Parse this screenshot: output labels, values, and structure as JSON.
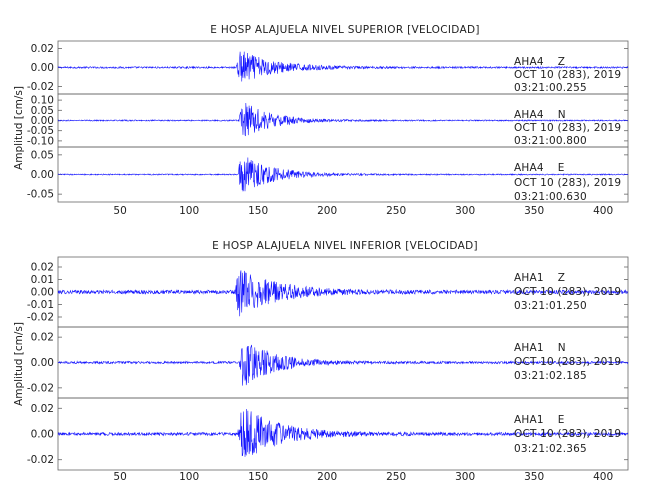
{
  "panels": [
    {
      "title": "E HOSP ALAJUELA NIVEL SUPERIOR [VELOCIDAD]",
      "ylabel": "Amplitud [cm/s]",
      "xlim": [
        5,
        418
      ],
      "xticks": [
        "50",
        "100",
        "150",
        "200",
        "250",
        "300",
        "350",
        "400"
      ],
      "traces": [
        {
          "station": "AHA4",
          "component": "Z",
          "date": "OCT 10 (283), 2019",
          "time": "03:21:00.255",
          "ylim": [
            -0.028,
            0.028
          ],
          "yticks": [
            "0.02",
            "0.00",
            "-0.02"
          ],
          "noise": 0.0009,
          "peak": 0.021,
          "onset": 134,
          "decay": 24
        },
        {
          "station": "AHA4",
          "component": "N",
          "date": "OCT 10 (283), 2019",
          "time": "03:21:00.800",
          "ylim": [
            -0.13,
            0.13
          ],
          "yticks": [
            "0.10",
            "0.05",
            "0.00",
            "-0.05",
            "-0.10"
          ],
          "noise": 0.003,
          "peak": 0.11,
          "onset": 136,
          "decay": 20
        },
        {
          "station": "AHA4",
          "component": "E",
          "date": "OCT 10 (283), 2019",
          "time": "03:21:00.630",
          "ylim": [
            -0.07,
            0.07
          ],
          "yticks": [
            "0.05",
            "0.00",
            "-0.05"
          ],
          "noise": 0.0015,
          "peak": 0.06,
          "onset": 135,
          "decay": 22
        }
      ]
    },
    {
      "title": "E HOSP ALAJUELA NIVEL INFERIOR [VELOCIDAD]",
      "ylabel": "Amplitud [cm/s]",
      "xlim": [
        5,
        418
      ],
      "xticks": [
        "50",
        "100",
        "150",
        "200",
        "250",
        "300",
        "350",
        "400"
      ],
      "traces": [
        {
          "station": "AHA1",
          "component": "Z",
          "date": "OCT 10 (283), 2019",
          "time": "03:21:01.250",
          "ylim": [
            -0.028,
            0.028
          ],
          "yticks": [
            "0.02",
            "0.01",
            "0.00",
            "-0.01",
            "-0.02"
          ],
          "noise": 0.0015,
          "peak": 0.022,
          "onset": 133,
          "decay": 26
        },
        {
          "station": "AHA1",
          "component": "N",
          "date": "OCT 10 (283), 2019",
          "time": "03:21:02.185",
          "ylim": [
            -0.028,
            0.028
          ],
          "yticks": [
            "0.02",
            "0.00",
            "-0.02"
          ],
          "noise": 0.0009,
          "peak": 0.022,
          "onset": 136,
          "decay": 22
        },
        {
          "station": "AHA1",
          "component": "E",
          "date": "OCT 10 (283), 2019",
          "time": "03:21:02.365",
          "ylim": [
            -0.028,
            0.028
          ],
          "yticks": [
            "0.02",
            "0.00",
            "-0.02"
          ],
          "noise": 0.0012,
          "peak": 0.024,
          "onset": 135,
          "decay": 26
        }
      ]
    }
  ],
  "colors": {
    "trace": "#1414ff",
    "axes": "#555555",
    "text": "#222222"
  },
  "chart_data": [
    {
      "type": "line",
      "title": "E HOSP ALAJUELA NIVEL SUPERIOR [VELOCIDAD]",
      "xlabel": "",
      "ylabel": "Amplitud [cm/s]",
      "xlim": [
        5,
        418
      ],
      "series": [
        {
          "name": "AHA4 Z",
          "peak_abs": 0.021,
          "ylim": [
            -0.028,
            0.028
          ]
        },
        {
          "name": "AHA4 N",
          "peak_abs": 0.11,
          "ylim": [
            -0.13,
            0.13
          ]
        },
        {
          "name": "AHA4 E",
          "peak_abs": 0.06,
          "ylim": [
            -0.07,
            0.07
          ]
        }
      ]
    },
    {
      "type": "line",
      "title": "E HOSP ALAJUELA NIVEL INFERIOR [VELOCIDAD]",
      "xlabel": "",
      "ylabel": "Amplitud [cm/s]",
      "xlim": [
        5,
        418
      ],
      "series": [
        {
          "name": "AHA1 Z",
          "peak_abs": 0.022,
          "ylim": [
            -0.028,
            0.028
          ]
        },
        {
          "name": "AHA1 N",
          "peak_abs": 0.022,
          "ylim": [
            -0.028,
            0.028
          ]
        },
        {
          "name": "AHA1 E",
          "peak_abs": 0.024,
          "ylim": [
            -0.028,
            0.028
          ]
        }
      ]
    }
  ]
}
